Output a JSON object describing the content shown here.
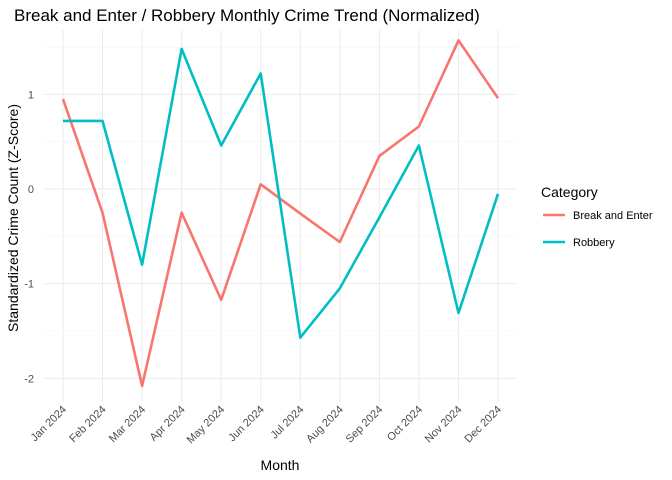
{
  "chart_data": {
    "type": "line",
    "title": "Break and Enter / Robbery Monthly Crime Trend (Normalized)",
    "xlabel": "Month",
    "ylabel": "Standardized Crime Count (Z-Score)",
    "categories": [
      "Jan 2024",
      "Feb 2024",
      "Mar 2024",
      "Apr 2024",
      "May 2024",
      "Jun 2024",
      "Jul 2024",
      "Aug 2024",
      "Sep 2024",
      "Oct 2024",
      "Nov 2024",
      "Dec 2024"
    ],
    "yticks": [
      -2,
      -1,
      0,
      1
    ],
    "ylim": [
      -2.25,
      1.68
    ],
    "grid": true,
    "legend": {
      "title": "Category",
      "position": "right"
    },
    "series": [
      {
        "name": "Break and Enter",
        "color": "#F8766D",
        "values": [
          0.95,
          -0.25,
          -2.08,
          -0.25,
          -1.17,
          0.05,
          -0.26,
          -0.56,
          0.35,
          0.66,
          1.57,
          0.96
        ]
      },
      {
        "name": "Robbery",
        "color": "#00BFC4",
        "values": [
          0.72,
          0.72,
          -0.8,
          1.48,
          0.46,
          1.22,
          -1.57,
          -1.05,
          -0.3,
          0.46,
          -1.31,
          -0.05
        ]
      }
    ]
  }
}
